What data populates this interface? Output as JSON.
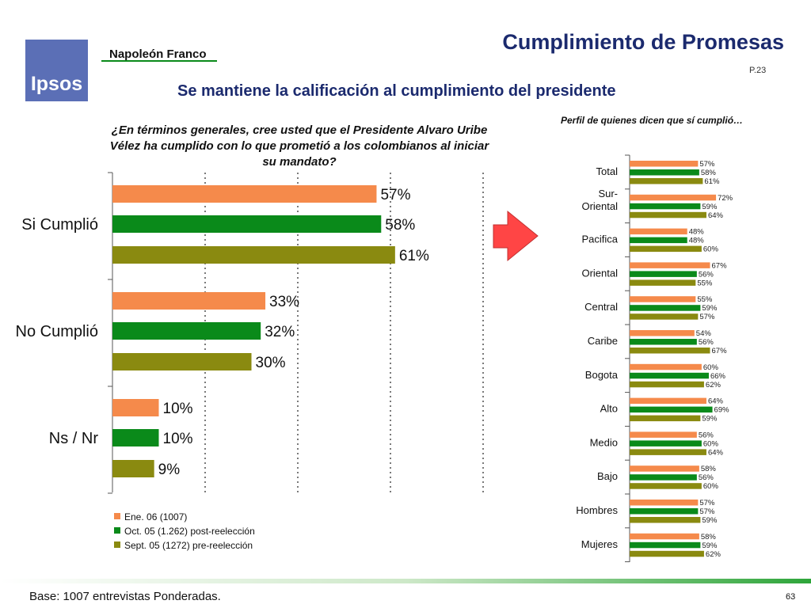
{
  "header": {
    "logo_text": "Ipsos",
    "brand": "Napoleón Franco",
    "title": "Cumplimiento de Promesas",
    "page_ref": "P.23",
    "subtitle": "Se mantiene la calificación al cumplimiento del presidente"
  },
  "colors": {
    "series": [
      "#f58a4b",
      "#0a8a1a",
      "#8a8a10"
    ],
    "arrow": "#ff4545",
    "title": "#1b2a6e"
  },
  "footer": {
    "base": "Base:  1007 entrevistas Ponderadas.",
    "slide_number": "63"
  },
  "chart_data": [
    {
      "type": "bar",
      "orientation": "horizontal",
      "title": "¿En términos generales, cree usted que el Presidente Alvaro Uribe Vélez ha cumplido con lo que prometió a los colombianos al iniciar su mandato?",
      "categories": [
        "Si Cumplió",
        "No Cumplió",
        "Ns / Nr"
      ],
      "series": [
        {
          "name": "Ene. 06 (1007)",
          "values": [
            57,
            33,
            10
          ]
        },
        {
          "name": "Oct. 05 (1.262) post-reelección",
          "values": [
            58,
            32,
            10
          ]
        },
        {
          "name": "Sept. 05 (1272) pre-reelección",
          "values": [
            61,
            30,
            9
          ]
        }
      ],
      "value_suffix": "%",
      "xlim": [
        0,
        100
      ],
      "grid": true,
      "legend_position": "bottom"
    },
    {
      "type": "bar",
      "orientation": "horizontal",
      "title": "Perfil de quienes dicen que sí cumplió…",
      "categories": [
        "Total",
        "Sur-Oriental",
        "Pacifica",
        "Oriental",
        "Central",
        "Caribe",
        "Bogota",
        "Alto",
        "Medio",
        "Bajo",
        "Hombres",
        "Mujeres"
      ],
      "series": [
        {
          "values": [
            57,
            72,
            48,
            67,
            55,
            54,
            60,
            64,
            56,
            58,
            57,
            58
          ]
        },
        {
          "values": [
            58,
            59,
            48,
            56,
            59,
            56,
            66,
            69,
            60,
            56,
            57,
            59
          ]
        },
        {
          "values": [
            61,
            64,
            60,
            55,
            57,
            67,
            62,
            59,
            64,
            60,
            59,
            62
          ]
        }
      ],
      "value_suffix": "%",
      "xlim": [
        0,
        100
      ]
    }
  ]
}
